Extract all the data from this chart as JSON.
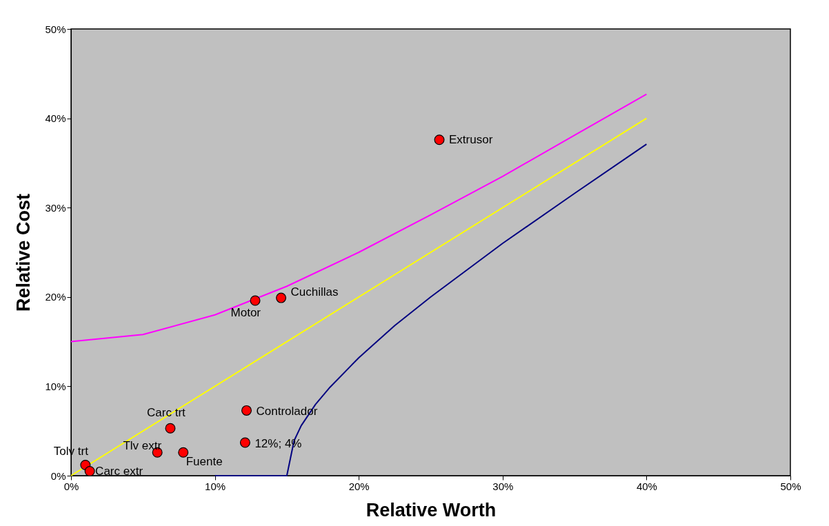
{
  "chart_data": {
    "type": "scatter",
    "xlabel": "Relative Worth",
    "ylabel": "Relative Cost",
    "xlim": [
      0,
      50
    ],
    "ylim": [
      0,
      50
    ],
    "xticks": [
      {
        "value": 0,
        "label": "0%"
      },
      {
        "value": 10,
        "label": "10%"
      },
      {
        "value": 20,
        "label": "20%"
      },
      {
        "value": 30,
        "label": "30%"
      },
      {
        "value": 40,
        "label": "40%"
      },
      {
        "value": 50,
        "label": "50%"
      }
    ],
    "yticks": [
      {
        "value": 0,
        "label": "0%"
      },
      {
        "value": 10,
        "label": "10%"
      },
      {
        "value": 20,
        "label": "20%"
      },
      {
        "value": 30,
        "label": "30%"
      },
      {
        "value": 40,
        "label": "40%"
      },
      {
        "value": 50,
        "label": "50%"
      }
    ],
    "grid": false,
    "series": [
      {
        "type": "line",
        "color": "#ff00ff",
        "x": [
          0,
          5,
          10,
          15,
          20,
          25,
          30,
          35,
          40
        ],
        "values": [
          15,
          15.8,
          18.0,
          21.2,
          25.0,
          29.2,
          33.5,
          38.1,
          42.7
        ]
      },
      {
        "type": "line",
        "color": "#ffff00",
        "x": [
          0,
          40
        ],
        "values": [
          0,
          40
        ]
      },
      {
        "type": "line",
        "color": "#000080",
        "x": [
          10,
          14.5,
          15,
          15.5,
          16,
          17,
          18,
          20,
          22.5,
          25,
          30,
          35,
          40
        ],
        "values": [
          0,
          0,
          0,
          3.9,
          5.6,
          8.0,
          9.9,
          13.2,
          16.8,
          20,
          26,
          31.6,
          37.1
        ]
      },
      {
        "type": "scatter",
        "color": "#ff0000",
        "marker": "circle",
        "x": [
          25.6,
          14.6,
          12.8,
          12.2,
          12.1,
          6.9,
          6.0,
          7.8,
          1.0,
          1.3
        ],
        "values": [
          37.6,
          19.9,
          19.6,
          7.3,
          3.7,
          5.3,
          2.6,
          2.6,
          1.2,
          0.5
        ]
      }
    ],
    "annotations": [
      {
        "text": "Extrusor",
        "x": 25.6,
        "y": 37.6
      },
      {
        "text": "Cuchillas",
        "x": 14.6,
        "y": 19.9
      },
      {
        "text": "Motor",
        "x": 12.8,
        "y": 19.6
      },
      {
        "text": "Controlador",
        "x": 12.2,
        "y": 7.3
      },
      {
        "text": "12%; 4%",
        "x": 12.1,
        "y": 3.7
      },
      {
        "text": "Carc trt",
        "x": 6.9,
        "y": 5.3
      },
      {
        "text": "Tlv extr",
        "x": 6.0,
        "y": 2.6
      },
      {
        "text": "Fuente",
        "x": 7.8,
        "y": 2.6
      },
      {
        "text": "Tolv trt",
        "x": 1.0,
        "y": 1.2
      },
      {
        "text": "Carc extr",
        "x": 1.3,
        "y": 0.5
      }
    ]
  }
}
